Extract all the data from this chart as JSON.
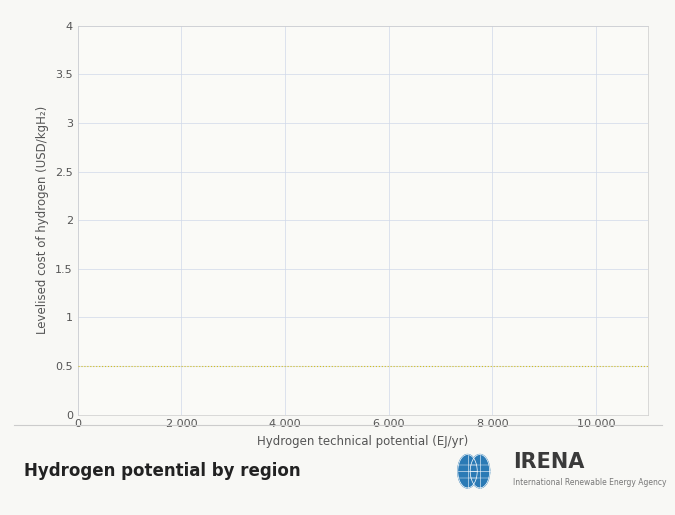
{
  "title": "Hydrogen potential by region",
  "xlabel": "Hydrogen technical potential (EJ/yr)",
  "ylabel": "Levelised cost of hydrogen (USD/kgH₂)",
  "xlim": [
    0,
    11000
  ],
  "ylim": [
    0,
    4
  ],
  "xticks": [
    0,
    2000,
    4000,
    6000,
    8000,
    10000
  ],
  "yticks": [
    0,
    0.5,
    1,
    1.5,
    2,
    2.5,
    3,
    3.5,
    4
  ],
  "xtick_labels": [
    "0",
    "2 000",
    "4 000",
    "6 000",
    "8 000",
    "10 000"
  ],
  "ytick_labels": [
    "0",
    "0.5",
    "1",
    "1.5",
    "2",
    "2.5",
    "3",
    "3.5",
    "4"
  ],
  "grid_color": "#d0d8ea",
  "grid_linestyle": "-",
  "grid_linewidth": 0.5,
  "background_color": "#f8f8f5",
  "plot_bg_color": "#fafaf7",
  "highlight_line_y": 0.5,
  "highlight_line_color": "#d4c020",
  "highlight_line_linewidth": 0.8,
  "highlight_line_linestyle": ":",
  "axis_label_fontsize": 8.5,
  "tick_fontsize": 8,
  "tick_color": "#555555",
  "footer_title": "Hydrogen potential by region",
  "footer_title_fontsize": 12,
  "spine_color": "#cccccc",
  "irena_text": "IRENA",
  "irena_sub": "International Renewable Energy Agency",
  "separator_color": "#cccccc"
}
